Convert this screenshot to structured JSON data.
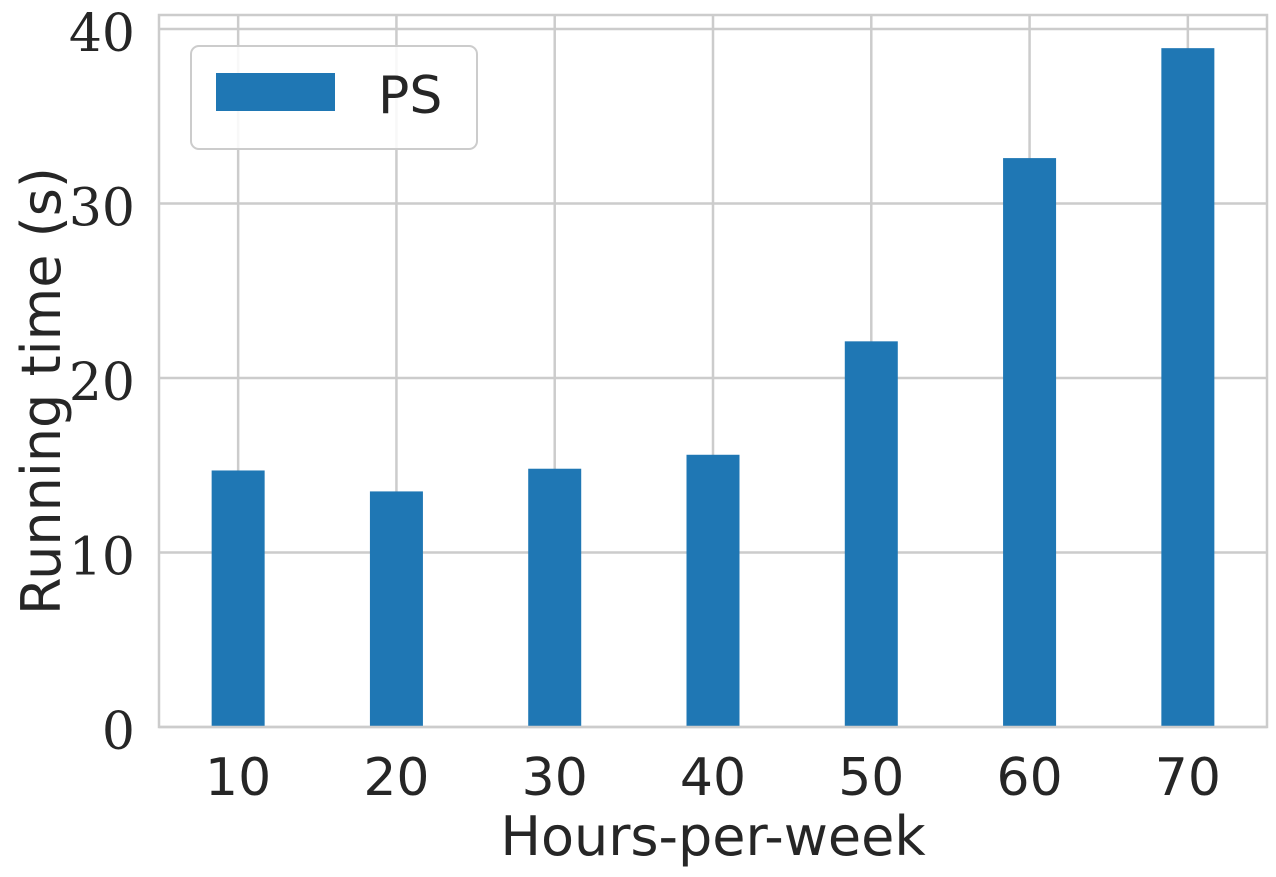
{
  "chart_data": {
    "type": "bar",
    "categories": [
      "10",
      "20",
      "30",
      "40",
      "50",
      "60",
      "70"
    ],
    "series": [
      {
        "name": "PS",
        "values": [
          14.7,
          13.5,
          14.8,
          15.6,
          22.1,
          32.6,
          38.9
        ],
        "color": "#1f77b4"
      }
    ],
    "xlabel": "Hours-per-week",
    "ylabel": "Running time (s)",
    "ylim": [
      0,
      40.8
    ],
    "yticks": [
      "0",
      "10",
      "20",
      "30",
      "40"
    ],
    "grid": true,
    "legend_position": "top-left"
  },
  "colors": {
    "bar": "#1f77b4",
    "grid": "#cccccc",
    "text": "#262626"
  }
}
